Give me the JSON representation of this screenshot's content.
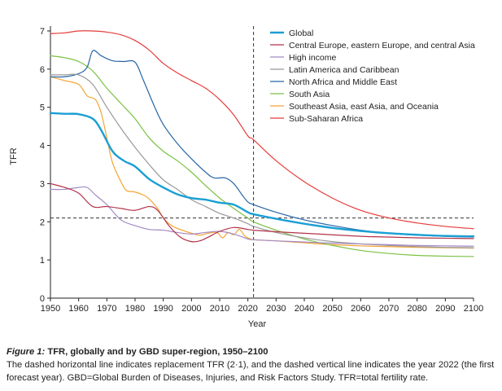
{
  "chart_data": {
    "type": "line",
    "xlabel": "Year",
    "ylabel": "TFR",
    "xlim": [
      1950,
      2100
    ],
    "ylim": [
      0,
      7
    ],
    "x_ticks": [
      "1950",
      "1960",
      "1970",
      "1980",
      "1990",
      "2000",
      "2010",
      "2020",
      "2030",
      "2040",
      "2050",
      "2060",
      "2070",
      "2080",
      "2090",
      "2100"
    ],
    "y_ticks": [
      "0",
      "1",
      "2",
      "3",
      "4",
      "5",
      "6",
      "7"
    ],
    "reference_lines": {
      "replacement_tfr": 2.1,
      "first_forecast_year": 2022
    },
    "legend_position": "top-right",
    "series": [
      {
        "name": "Global",
        "color": "#1a9fd4",
        "points": [
          [
            1950,
            4.85
          ],
          [
            1955,
            4.83
          ],
          [
            1960,
            4.82
          ],
          [
            1965,
            4.7
          ],
          [
            1968,
            4.4
          ],
          [
            1972,
            3.85
          ],
          [
            1976,
            3.6
          ],
          [
            1980,
            3.45
          ],
          [
            1985,
            3.12
          ],
          [
            1990,
            2.9
          ],
          [
            1995,
            2.72
          ],
          [
            2000,
            2.62
          ],
          [
            2005,
            2.58
          ],
          [
            2010,
            2.5
          ],
          [
            2015,
            2.45
          ],
          [
            2020,
            2.25
          ],
          [
            2022,
            2.2
          ],
          [
            2030,
            2.08
          ],
          [
            2040,
            1.95
          ],
          [
            2050,
            1.84
          ],
          [
            2060,
            1.76
          ],
          [
            2070,
            1.7
          ],
          [
            2080,
            1.66
          ],
          [
            2090,
            1.63
          ],
          [
            2100,
            1.62
          ]
        ]
      },
      {
        "name": "Central Europe, eastern Europe, and central Asia",
        "color": "#b2334a",
        "points": [
          [
            1950,
            3.0
          ],
          [
            1955,
            2.9
          ],
          [
            1960,
            2.75
          ],
          [
            1965,
            2.4
          ],
          [
            1970,
            2.4
          ],
          [
            1975,
            2.35
          ],
          [
            1980,
            2.3
          ],
          [
            1985,
            2.4
          ],
          [
            1988,
            2.3
          ],
          [
            1992,
            1.9
          ],
          [
            1996,
            1.6
          ],
          [
            2000,
            1.48
          ],
          [
            2003,
            1.5
          ],
          [
            2006,
            1.6
          ],
          [
            2010,
            1.75
          ],
          [
            2015,
            1.85
          ],
          [
            2020,
            1.8
          ],
          [
            2022,
            1.78
          ],
          [
            2030,
            1.74
          ],
          [
            2040,
            1.7
          ],
          [
            2050,
            1.66
          ],
          [
            2060,
            1.62
          ],
          [
            2070,
            1.6
          ],
          [
            2080,
            1.58
          ],
          [
            2090,
            1.57
          ],
          [
            2100,
            1.56
          ]
        ]
      },
      {
        "name": "High income",
        "color": "#a38ac4",
        "points": [
          [
            1950,
            2.85
          ],
          [
            1955,
            2.85
          ],
          [
            1960,
            2.9
          ],
          [
            1963,
            2.9
          ],
          [
            1966,
            2.7
          ],
          [
            1970,
            2.45
          ],
          [
            1975,
            2.05
          ],
          [
            1980,
            1.9
          ],
          [
            1985,
            1.8
          ],
          [
            1990,
            1.78
          ],
          [
            1995,
            1.72
          ],
          [
            2000,
            1.68
          ],
          [
            2005,
            1.72
          ],
          [
            2010,
            1.75
          ],
          [
            2015,
            1.68
          ],
          [
            2020,
            1.55
          ],
          [
            2022,
            1.53
          ],
          [
            2030,
            1.5
          ],
          [
            2040,
            1.47
          ],
          [
            2050,
            1.44
          ],
          [
            2060,
            1.42
          ],
          [
            2070,
            1.4
          ],
          [
            2080,
            1.38
          ],
          [
            2090,
            1.37
          ],
          [
            2100,
            1.36
          ]
        ]
      },
      {
        "name": "Latin America and Caribbean",
        "color": "#999999",
        "points": [
          [
            1950,
            5.85
          ],
          [
            1955,
            5.85
          ],
          [
            1960,
            5.85
          ],
          [
            1965,
            5.6
          ],
          [
            1970,
            5.0
          ],
          [
            1975,
            4.45
          ],
          [
            1980,
            3.95
          ],
          [
            1985,
            3.5
          ],
          [
            1990,
            3.1
          ],
          [
            1995,
            2.85
          ],
          [
            2000,
            2.58
          ],
          [
            2005,
            2.4
          ],
          [
            2010,
            2.22
          ],
          [
            2015,
            2.1
          ],
          [
            2020,
            1.95
          ],
          [
            2022,
            1.88
          ],
          [
            2030,
            1.72
          ],
          [
            2040,
            1.58
          ],
          [
            2050,
            1.48
          ],
          [
            2060,
            1.42
          ],
          [
            2070,
            1.38
          ],
          [
            2080,
            1.35
          ],
          [
            2090,
            1.33
          ],
          [
            2100,
            1.32
          ]
        ]
      },
      {
        "name": "North Africa and Middle East",
        "color": "#2765a6",
        "points": [
          [
            1950,
            5.8
          ],
          [
            1955,
            5.8
          ],
          [
            1960,
            5.88
          ],
          [
            1963,
            6.05
          ],
          [
            1965,
            6.48
          ],
          [
            1968,
            6.35
          ],
          [
            1972,
            6.22
          ],
          [
            1976,
            6.2
          ],
          [
            1980,
            6.18
          ],
          [
            1983,
            5.7
          ],
          [
            1987,
            5.0
          ],
          [
            1990,
            4.55
          ],
          [
            1995,
            4.05
          ],
          [
            2000,
            3.65
          ],
          [
            2005,
            3.3
          ],
          [
            2008,
            3.15
          ],
          [
            2012,
            3.15
          ],
          [
            2015,
            3.0
          ],
          [
            2018,
            2.7
          ],
          [
            2020,
            2.52
          ],
          [
            2022,
            2.45
          ],
          [
            2030,
            2.25
          ],
          [
            2040,
            2.05
          ],
          [
            2050,
            1.9
          ],
          [
            2060,
            1.78
          ],
          [
            2070,
            1.7
          ],
          [
            2080,
            1.65
          ],
          [
            2090,
            1.62
          ],
          [
            2100,
            1.6
          ]
        ]
      },
      {
        "name": "South Asia",
        "color": "#7ac143",
        "points": [
          [
            1950,
            6.35
          ],
          [
            1955,
            6.3
          ],
          [
            1960,
            6.2
          ],
          [
            1965,
            5.95
          ],
          [
            1970,
            5.5
          ],
          [
            1975,
            5.1
          ],
          [
            1980,
            4.7
          ],
          [
            1985,
            4.2
          ],
          [
            1990,
            3.85
          ],
          [
            1995,
            3.6
          ],
          [
            2000,
            3.3
          ],
          [
            2005,
            2.95
          ],
          [
            2010,
            2.62
          ],
          [
            2015,
            2.35
          ],
          [
            2020,
            2.1
          ],
          [
            2022,
            2.0
          ],
          [
            2030,
            1.78
          ],
          [
            2040,
            1.55
          ],
          [
            2050,
            1.38
          ],
          [
            2060,
            1.25
          ],
          [
            2070,
            1.17
          ],
          [
            2080,
            1.12
          ],
          [
            2090,
            1.1
          ],
          [
            2100,
            1.09
          ]
        ]
      },
      {
        "name": "Southeast Asia, east Asia, and Oceania",
        "color": "#f4a533",
        "points": [
          [
            1950,
            5.8
          ],
          [
            1955,
            5.7
          ],
          [
            1960,
            5.6
          ],
          [
            1963,
            5.3
          ],
          [
            1966,
            5.2
          ],
          [
            1968,
            4.85
          ],
          [
            1970,
            4.2
          ],
          [
            1972,
            3.55
          ],
          [
            1975,
            3.05
          ],
          [
            1977,
            2.82
          ],
          [
            1980,
            2.78
          ],
          [
            1983,
            2.7
          ],
          [
            1985,
            2.6
          ],
          [
            1988,
            2.35
          ],
          [
            1990,
            2.1
          ],
          [
            1993,
            1.9
          ],
          [
            1996,
            1.8
          ],
          [
            2000,
            1.7
          ],
          [
            2003,
            1.65
          ],
          [
            2006,
            1.7
          ],
          [
            2009,
            1.72
          ],
          [
            2011,
            1.58
          ],
          [
            2013,
            1.72
          ],
          [
            2015,
            1.66
          ],
          [
            2017,
            1.8
          ],
          [
            2019,
            1.62
          ],
          [
            2021,
            1.55
          ],
          [
            2022,
            1.53
          ],
          [
            2030,
            1.5
          ],
          [
            2040,
            1.45
          ],
          [
            2050,
            1.4
          ],
          [
            2060,
            1.37
          ],
          [
            2070,
            1.35
          ],
          [
            2080,
            1.33
          ],
          [
            2090,
            1.32
          ],
          [
            2100,
            1.31
          ]
        ]
      },
      {
        "name": "Sub-Saharan Africa",
        "color": "#e63b3b",
        "points": [
          [
            1950,
            6.93
          ],
          [
            1955,
            6.95
          ],
          [
            1960,
            7.0
          ],
          [
            1965,
            7.0
          ],
          [
            1970,
            6.97
          ],
          [
            1975,
            6.9
          ],
          [
            1980,
            6.75
          ],
          [
            1985,
            6.5
          ],
          [
            1990,
            6.15
          ],
          [
            1995,
            5.9
          ],
          [
            2000,
            5.7
          ],
          [
            2005,
            5.5
          ],
          [
            2010,
            5.2
          ],
          [
            2015,
            4.8
          ],
          [
            2020,
            4.25
          ],
          [
            2022,
            4.15
          ],
          [
            2030,
            3.6
          ],
          [
            2040,
            3.05
          ],
          [
            2050,
            2.62
          ],
          [
            2060,
            2.3
          ],
          [
            2070,
            2.1
          ],
          [
            2080,
            1.97
          ],
          [
            2090,
            1.88
          ],
          [
            2100,
            1.82
          ]
        ]
      }
    ]
  },
  "caption": {
    "figure_label": "Figure 1:",
    "title": " TFR, globally and by GBD super-region, 1950–2100",
    "text": "The dashed horizontal line indicates replacement TFR (2·1), and the dashed vertical line indicates the year 2022 (the first forecast year). GBD=Global Burden of Diseases, Injuries, and Risk Factors Study. TFR=total fertility rate."
  }
}
